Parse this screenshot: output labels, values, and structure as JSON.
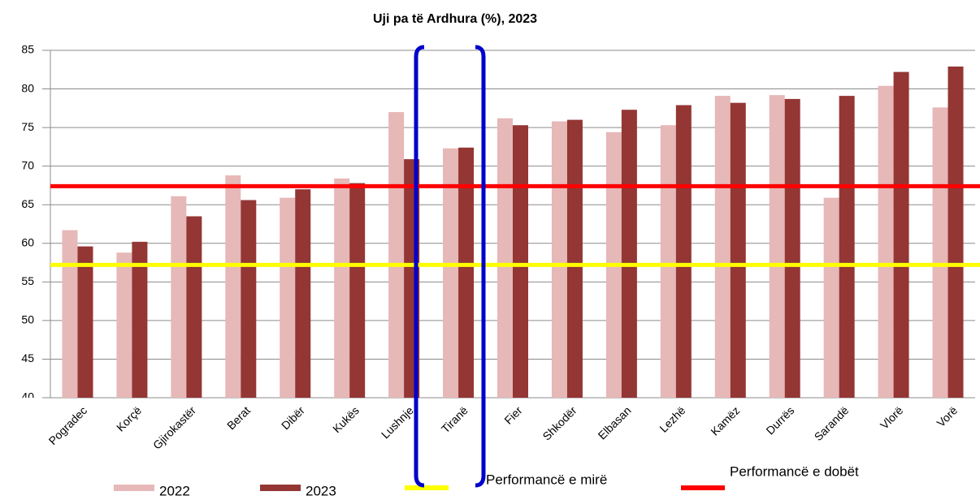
{
  "chart_data": {
    "type": "bar",
    "title": "Uji pa të Ardhura (%),  2023",
    "categories": [
      "Pogradec",
      "Korçë",
      "Gjirokastër",
      "Berat",
      "Dibër",
      "Kukës",
      "Lushnje",
      "Tiranë",
      "Fier",
      "Shkodër",
      "Elbasan",
      "Lezhë",
      "Kamëz",
      "Durrës",
      "Sarandë",
      "Vlorë",
      "Vorë"
    ],
    "series": [
      {
        "name": "2022",
        "color": "#e6b8b7",
        "values": [
          61.7,
          58.8,
          66.1,
          68.8,
          65.9,
          68.4,
          77.0,
          72.3,
          76.2,
          75.8,
          74.4,
          75.3,
          79.1,
          79.2,
          65.9,
          80.4,
          77.6
        ]
      },
      {
        "name": "2023",
        "color": "#943634",
        "values": [
          59.6,
          60.2,
          63.5,
          65.6,
          67.0,
          67.8,
          70.9,
          72.4,
          75.3,
          76.0,
          77.3,
          77.9,
          78.2,
          78.7,
          79.1,
          82.2,
          82.9
        ]
      }
    ],
    "reference_lines": [
      {
        "name": "Performancë e mirë",
        "color": "#ffff00",
        "value": 57.2
      },
      {
        "name": "Performancë e dobët",
        "color": "#ff0000",
        "value": 67.4
      }
    ],
    "ylim": [
      40,
      85
    ],
    "yticks": [
      40,
      45,
      50,
      55,
      60,
      65,
      70,
      75,
      80,
      85
    ],
    "grid": true
  }
}
